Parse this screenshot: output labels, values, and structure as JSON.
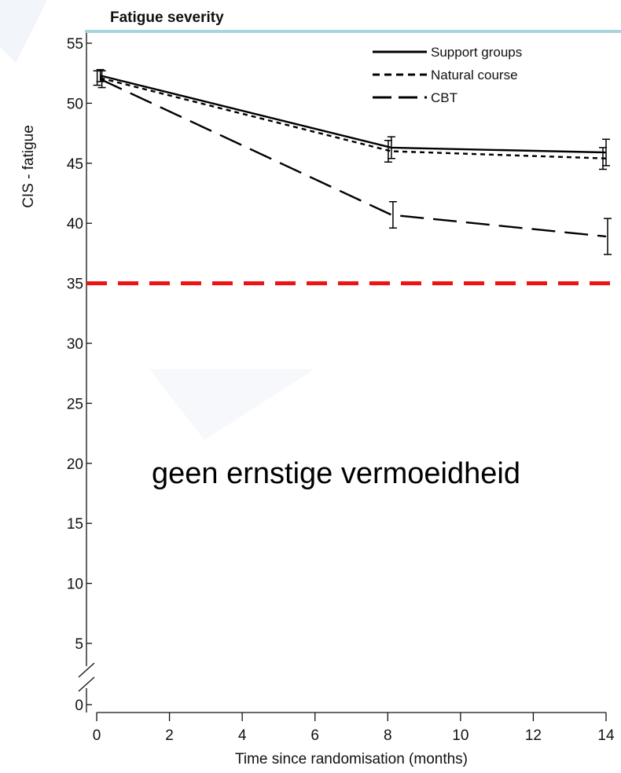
{
  "chart_data": {
    "type": "line",
    "title": "Fatigue severity",
    "xlabel": "Time since randomisation (months)",
    "ylabel": "CIS - fatigue",
    "xlim": [
      0,
      14
    ],
    "ylim": [
      0,
      55
    ],
    "x_ticks": [
      0,
      2,
      4,
      6,
      8,
      10,
      12,
      14
    ],
    "y_ticks": [
      0,
      5,
      10,
      15,
      20,
      25,
      30,
      35,
      40,
      45,
      50,
      55
    ],
    "axis_break": true,
    "grid": false,
    "legend_position": "top-right",
    "series": [
      {
        "name": "Support groups",
        "style": "solid",
        "color": "#000000",
        "x": [
          0.1,
          8.1,
          14
        ],
        "y": [
          52.3,
          46.3,
          45.9
        ],
        "err": [
          0.5,
          0.9,
          1.1
        ]
      },
      {
        "name": "Natural course",
        "style": "dotted",
        "color": "#000000",
        "x": [
          0.1,
          8.1,
          14
        ],
        "y": [
          52.1,
          46.0,
          45.4
        ],
        "err": [
          0.6,
          0.9,
          0.9
        ]
      },
      {
        "name": "CBT",
        "style": "dashed",
        "color": "#000000",
        "x": [
          0.1,
          8.1,
          14
        ],
        "y": [
          52.0,
          40.7,
          38.9
        ],
        "err": [
          0.7,
          1.1,
          1.5
        ]
      }
    ],
    "reference_line": {
      "y": 35,
      "color": "#ee1111",
      "style": "dashed"
    },
    "annotation": "geen ernstige vermoeidheid"
  }
}
